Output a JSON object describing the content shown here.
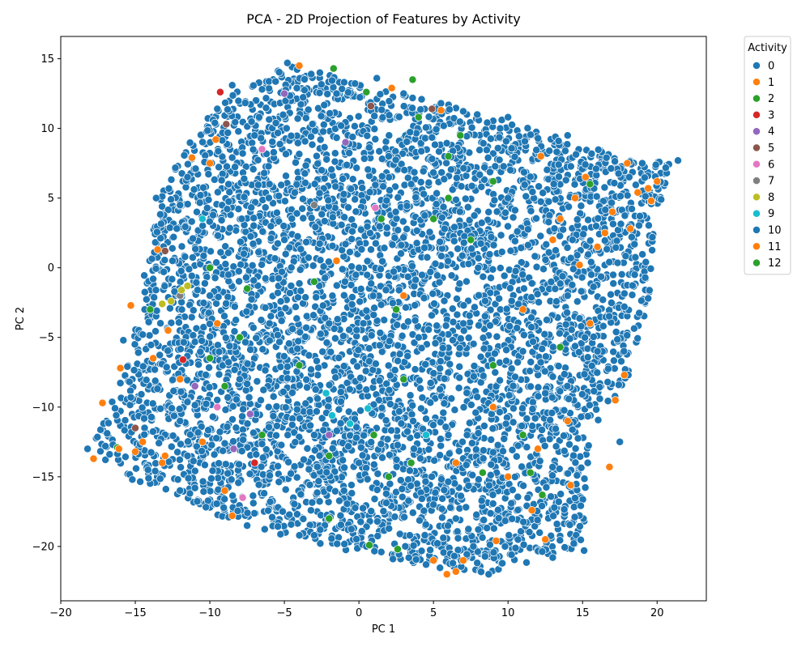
{
  "chart_data": {
    "type": "scatter",
    "title": "PCA - 2D Projection of Features by Activity",
    "xlabel": "PC 1",
    "ylabel": "PC 2",
    "xlim": [
      -20,
      23.3
    ],
    "ylim": [
      -23.9,
      16.6
    ],
    "xticks": [
      -20,
      -15,
      -10,
      -5,
      0,
      5,
      10,
      15,
      20
    ],
    "yticks": [
      15,
      10,
      5,
      0,
      -5,
      -10,
      -15,
      -20
    ],
    "x_tick_labels": [
      "−20",
      "−15",
      "−10",
      "−5",
      "0",
      "5",
      "10",
      "15",
      "20"
    ],
    "y_tick_labels": [
      "15",
      "10",
      "5",
      "0",
      "−5",
      "−10",
      "−15",
      "−20"
    ],
    "grid": false,
    "legend": {
      "title": "Activity",
      "placement": "outside-right-top",
      "entries": [
        {
          "label": "0",
          "color": "#1f77b4"
        },
        {
          "label": "1",
          "color": "#ff7f0e"
        },
        {
          "label": "2",
          "color": "#2ca02c"
        },
        {
          "label": "3",
          "color": "#d62728"
        },
        {
          "label": "4",
          "color": "#9467bd"
        },
        {
          "label": "5",
          "color": "#8c564b"
        },
        {
          "label": "6",
          "color": "#e377c2"
        },
        {
          "label": "7",
          "color": "#7f7f7f"
        },
        {
          "label": "8",
          "color": "#bcbd22"
        },
        {
          "label": "9",
          "color": "#17becf"
        },
        {
          "label": "10",
          "color": "#1f77b4"
        },
        {
          "label": "11",
          "color": "#ff7f0e"
        },
        {
          "label": "12",
          "color": "#2ca02c"
        }
      ]
    },
    "series": [
      {
        "name": "0",
        "color": "#1f77b4",
        "points": [
          [
            -4.8,
            14.7
          ],
          [
            -3.2,
            13.9
          ],
          [
            -6.5,
            12.8
          ],
          [
            -1.5,
            12.5
          ],
          [
            1.2,
            13.6
          ],
          [
            -8.5,
            13.1
          ],
          [
            -9.5,
            11.4
          ],
          [
            -11.5,
            6.5
          ],
          [
            -13.6,
            5.0
          ],
          [
            -12.5,
            0.5
          ],
          [
            -14.5,
            -4.8
          ],
          [
            -15.8,
            -5.2
          ],
          [
            -15.3,
            -9.3
          ],
          [
            -16.5,
            -12.7
          ],
          [
            -17.0,
            -12.8
          ],
          [
            -18.2,
            -13.0
          ],
          [
            -15.2,
            -15.2
          ],
          [
            -11.0,
            -15.8
          ],
          [
            -7.5,
            -18.5
          ],
          [
            -3.0,
            -19.2
          ],
          [
            0.5,
            -20.0
          ],
          [
            4.5,
            -21.3
          ],
          [
            6.3,
            -21.2
          ],
          [
            8.7,
            -22.0
          ],
          [
            9.8,
            -20.0
          ],
          [
            13.0,
            -20.8
          ],
          [
            15.1,
            -20.3
          ],
          [
            13.4,
            -16.8
          ],
          [
            17.5,
            -12.5
          ],
          [
            19.4,
            -2.2
          ],
          [
            21.4,
            7.7
          ],
          [
            19.0,
            7.5
          ],
          [
            16.6,
            7.9
          ],
          [
            14.0,
            9.5
          ],
          [
            10.0,
            10.8
          ],
          [
            5.5,
            11.8
          ],
          [
            3.0,
            12.5
          ],
          [
            -2.0,
            -4.0
          ],
          [
            -5.0,
            2.0
          ],
          [
            4.0,
            -5.0
          ],
          [
            8.0,
            0.0
          ],
          [
            -8.0,
            -8.0
          ],
          [
            2.0,
            8.0
          ],
          [
            -3.0,
            -12.0
          ],
          [
            6.0,
            -12.0
          ],
          [
            11.0,
            -6.0
          ],
          [
            14.0,
            -2.0
          ],
          [
            -10.0,
            -2.0
          ],
          [
            0.0,
            0.0
          ],
          [
            -6.0,
            6.0
          ],
          [
            10.0,
            5.0
          ],
          [
            16.0,
            -6.0
          ],
          [
            -12.0,
            -11.0
          ],
          [
            5.0,
            -17.0
          ],
          [
            -1.0,
            -16.0
          ]
        ]
      },
      {
        "name": "1",
        "color": "#ff7f0e",
        "points": [
          [
            -4.0,
            14.5
          ],
          [
            -17.8,
            -13.7
          ],
          [
            -17.2,
            -9.7
          ],
          [
            -15.3,
            -2.7
          ],
          [
            -16.0,
            -7.2
          ],
          [
            -14.5,
            -12.5
          ],
          [
            -13.2,
            -14.0
          ],
          [
            -9.5,
            -4.0
          ],
          [
            -12.0,
            -8.0
          ],
          [
            -10.0,
            7.5
          ],
          [
            -11.2,
            7.9
          ],
          [
            -13.5,
            1.3
          ],
          [
            2.2,
            12.9
          ],
          [
            5.5,
            11.3
          ],
          [
            13.5,
            3.5
          ],
          [
            15.2,
            6.5
          ],
          [
            17.0,
            4.0
          ],
          [
            18.0,
            7.5
          ],
          [
            20.0,
            6.2
          ],
          [
            19.6,
            4.8
          ],
          [
            15.5,
            -4.0
          ],
          [
            17.2,
            -9.5
          ],
          [
            17.8,
            -7.7
          ],
          [
            14.2,
            -15.6
          ],
          [
            12.5,
            -19.5
          ],
          [
            11.6,
            -17.4
          ],
          [
            16.8,
            -14.3
          ],
          [
            9.2,
            -19.6
          ],
          [
            7.0,
            -21.0
          ],
          [
            5.9,
            -22.0
          ],
          [
            6.5,
            -21.8
          ],
          [
            5.0,
            -21.0
          ],
          [
            10.0,
            -15.0
          ],
          [
            12.0,
            -13.0
          ],
          [
            14.0,
            -11.0
          ],
          [
            16.0,
            1.5
          ],
          [
            14.5,
            5.0
          ],
          [
            13.0,
            2.0
          ],
          [
            11.0,
            -3.0
          ],
          [
            9.0,
            -10.0
          ],
          [
            -9.0,
            -16.0
          ],
          [
            -8.5,
            -17.8
          ],
          [
            -1.5,
            0.5
          ],
          [
            3.0,
            -2.0
          ],
          [
            6.5,
            -14.0
          ],
          [
            12.2,
            8.0
          ],
          [
            18.2,
            2.8
          ],
          [
            -9.6,
            9.2
          ]
        ]
      },
      {
        "name": "2",
        "color": "#2ca02c",
        "points": [
          [
            -1.7,
            14.3
          ],
          [
            3.6,
            13.5
          ],
          [
            0.5,
            12.6
          ],
          [
            4.0,
            10.8
          ],
          [
            6.8,
            9.5
          ],
          [
            5.0,
            3.5
          ],
          [
            6.0,
            5.0
          ],
          [
            7.5,
            2.0
          ],
          [
            2.5,
            -3.0
          ],
          [
            3.0,
            -8.0
          ],
          [
            1.0,
            -12.0
          ],
          [
            -4.0,
            -7.0
          ],
          [
            -8.0,
            -5.0
          ],
          [
            -10.0,
            0.0
          ],
          [
            -6.5,
            -12.0
          ],
          [
            -2.0,
            -18.0
          ],
          [
            0.7,
            -19.9
          ],
          [
            2.6,
            -20.2
          ],
          [
            8.3,
            -14.7
          ],
          [
            11.5,
            -14.7
          ],
          [
            12.3,
            -16.3
          ],
          [
            13.5,
            -5.7
          ],
          [
            15.5,
            6.0
          ],
          [
            9.0,
            6.2
          ],
          [
            -16.2,
            -12.9
          ],
          [
            -9.0,
            -8.5
          ],
          [
            -3.0,
            -1.0
          ],
          [
            2.0,
            -15.0
          ]
        ]
      },
      {
        "name": "3",
        "color": "#d62728",
        "points": [
          [
            -9.3,
            12.6
          ],
          [
            -11.8,
            -6.6
          ],
          [
            -7.0,
            -14.0
          ]
        ]
      },
      {
        "name": "4",
        "color": "#9467bd",
        "points": [
          [
            -5.0,
            12.5
          ],
          [
            -0.9,
            9.0
          ],
          [
            -7.3,
            -10.5
          ],
          [
            -11.0,
            -8.5
          ],
          [
            -8.4,
            -13.0
          ],
          [
            -2.0,
            -12.0
          ]
        ]
      },
      {
        "name": "5",
        "color": "#8c564b",
        "points": [
          [
            -8.9,
            10.3
          ],
          [
            0.8,
            11.6
          ],
          [
            4.9,
            11.4
          ],
          [
            -13.0,
            1.2
          ],
          [
            -15.0,
            -11.5
          ]
        ]
      },
      {
        "name": "6",
        "color": "#e377c2",
        "points": [
          [
            1.1,
            4.3
          ],
          [
            -6.5,
            8.5
          ],
          [
            -9.5,
            -10.0
          ],
          [
            -7.8,
            -16.5
          ]
        ]
      },
      {
        "name": "7",
        "color": "#7f7f7f",
        "points": [
          [
            -12.0,
            -2.0
          ],
          [
            -3.0,
            4.5
          ]
        ]
      },
      {
        "name": "8",
        "color": "#bcbd22",
        "points": [
          [
            -13.2,
            -2.6
          ],
          [
            -12.6,
            -2.4
          ],
          [
            -11.9,
            -1.6
          ],
          [
            -11.5,
            -1.3
          ]
        ]
      },
      {
        "name": "9",
        "color": "#17becf",
        "points": [
          [
            -10.5,
            3.5
          ],
          [
            -2.2,
            -9.0
          ],
          [
            -1.8,
            -10.6
          ],
          [
            -0.6,
            -11.2
          ],
          [
            0.6,
            -10.1
          ],
          [
            4.5,
            -12.0
          ]
        ]
      },
      {
        "name": "10",
        "color": "#1f77b4",
        "points": [
          [
            -13.8,
            -0.8
          ],
          [
            -12.0,
            4.5
          ],
          [
            -7.0,
            9.5
          ],
          [
            -2.5,
            7.0
          ],
          [
            3.5,
            6.0
          ],
          [
            7.0,
            -4.0
          ],
          [
            -6.0,
            -4.0
          ],
          [
            -11.5,
            -13.5
          ],
          [
            0.0,
            -14.0
          ],
          [
            6.5,
            -18.0
          ],
          [
            12.5,
            -9.0
          ],
          [
            17.8,
            -2.8
          ],
          [
            18.5,
            -0.5
          ]
        ]
      },
      {
        "name": "11",
        "color": "#ff7f0e",
        "points": [
          [
            -15.0,
            -13.2
          ],
          [
            -16.1,
            -13.0
          ],
          [
            -13.0,
            -13.5
          ],
          [
            -10.5,
            -12.5
          ],
          [
            14.8,
            0.2
          ],
          [
            16.5,
            2.5
          ],
          [
            18.7,
            5.4
          ],
          [
            19.4,
            5.7
          ],
          [
            -13.8,
            -6.5
          ],
          [
            -12.8,
            -4.5
          ]
        ]
      },
      {
        "name": "12",
        "color": "#2ca02c",
        "points": [
          [
            -10.0,
            -6.5
          ],
          [
            -7.5,
            -1.5
          ],
          [
            1.5,
            3.5
          ],
          [
            6.0,
            8.0
          ],
          [
            9.0,
            -7.0
          ],
          [
            3.5,
            -14.0
          ],
          [
            -2.0,
            -13.5
          ],
          [
            11.0,
            -12.0
          ],
          [
            -14.0,
            -3.0
          ]
        ]
      }
    ]
  }
}
